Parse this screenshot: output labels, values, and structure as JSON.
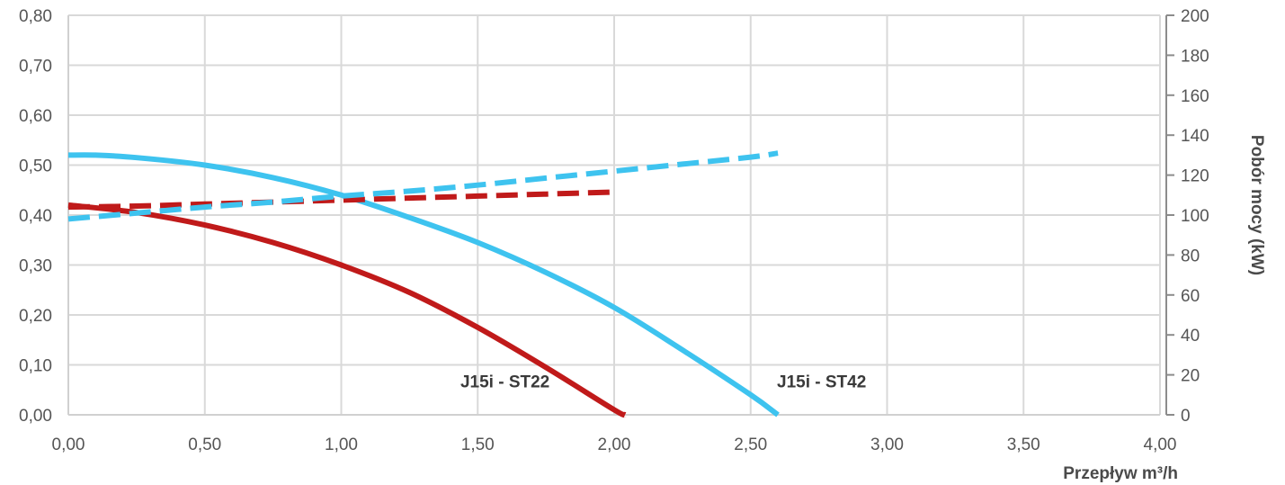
{
  "chart_data": {
    "type": "line",
    "xlabel": "Przepływ m³/h",
    "ylabel": "",
    "y2label": "Pobór mocy (kW)",
    "xlim": [
      0,
      4
    ],
    "ylim": [
      0,
      0.8
    ],
    "y2lim": [
      0,
      200
    ],
    "x_ticks": [
      "0,00",
      "0,50",
      "1,00",
      "1,50",
      "2,00",
      "2,50",
      "3,00",
      "3,50",
      "4,00"
    ],
    "y_ticks": [
      "0,00",
      "0,10",
      "0,20",
      "0,30",
      "0,40",
      "0,50",
      "0,60",
      "0,70",
      "0,80"
    ],
    "y2_ticks": [
      "0",
      "20",
      "40",
      "60",
      "80",
      "100",
      "120",
      "140",
      "160",
      "180",
      "200"
    ],
    "grid": true,
    "annotations": [
      {
        "text": "J15i - ST22",
        "x": 1.6,
        "y": 0.055
      },
      {
        "text": "J15i - ST42",
        "x": 2.76,
        "y": 0.055
      }
    ],
    "series": [
      {
        "axis": "left",
        "style": "solid",
        "color": "#c01a1a",
        "x": [
          0,
          0.25,
          0.5,
          0.75,
          1.0,
          1.25,
          1.5,
          1.75,
          2.0,
          2.04
        ],
        "y": [
          0.42,
          0.405,
          0.38,
          0.345,
          0.3,
          0.245,
          0.175,
          0.095,
          0.01,
          0.0
        ]
      },
      {
        "axis": "left",
        "style": "solid",
        "color": "#3ec3ef",
        "x": [
          0,
          0.1,
          0.25,
          0.5,
          0.75,
          1.0,
          1.25,
          1.5,
          1.75,
          2.0,
          2.25,
          2.5,
          2.6
        ],
        "y": [
          0.52,
          0.52,
          0.515,
          0.5,
          0.475,
          0.44,
          0.395,
          0.345,
          0.285,
          0.215,
          0.13,
          0.04,
          0.0
        ]
      },
      {
        "axis": "right",
        "style": "dashed",
        "color": "#c01a1a",
        "x": [
          0,
          0.25,
          0.5,
          0.75,
          1.0,
          1.25,
          1.5,
          1.75,
          2.0
        ],
        "y": [
          104,
          104.5,
          105.5,
          106.5,
          107.5,
          108.5,
          109.5,
          110.5,
          111.5
        ]
      },
      {
        "axis": "right",
        "style": "dashed",
        "color": "#3ec3ef",
        "x": [
          0,
          0.25,
          0.5,
          0.75,
          1.0,
          1.25,
          1.5,
          1.75,
          2.0,
          2.25,
          2.5,
          2.6
        ],
        "y": [
          98,
          101,
          104,
          106.5,
          109.5,
          112,
          115,
          118.5,
          122,
          125.5,
          129,
          131
        ]
      }
    ]
  }
}
